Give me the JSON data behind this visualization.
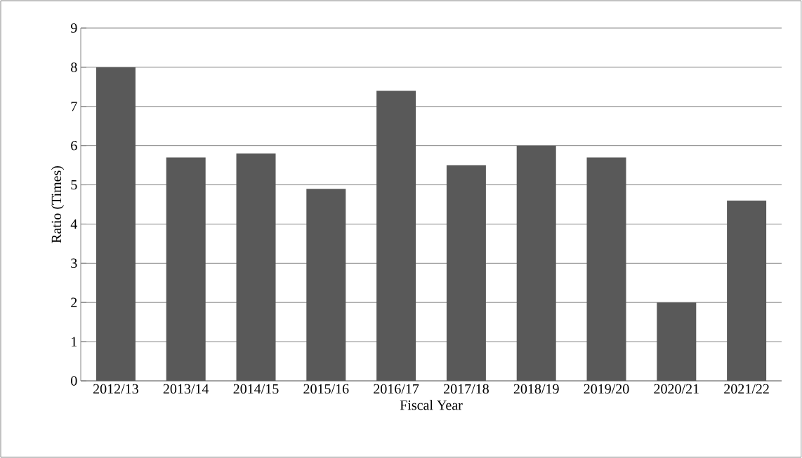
{
  "chart_data": {
    "type": "bar",
    "xlabel": "Fiscal Year",
    "ylabel": "Ratio (Times)",
    "categories": [
      "2012/13",
      "2013/14",
      "2014/15",
      "2015/16",
      "2016/17",
      "2017/18",
      "2018/19",
      "2019/20",
      "2020/21",
      "2021/22"
    ],
    "values": [
      8.0,
      5.7,
      5.8,
      4.9,
      7.4,
      5.5,
      6.0,
      5.7,
      2.0,
      4.6
    ],
    "color": "#595959",
    "ylim": [
      0,
      9
    ],
    "yticks": [
      0,
      1,
      2,
      3,
      4,
      5,
      6,
      7,
      8,
      9
    ],
    "grid": "y"
  }
}
